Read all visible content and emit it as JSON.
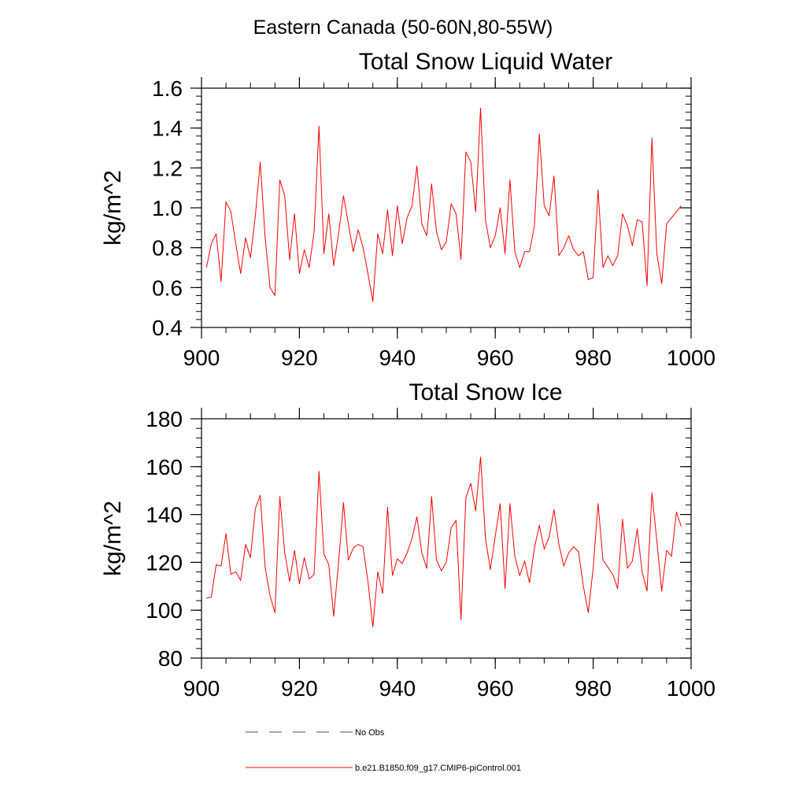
{
  "figure": {
    "title": "Eastern Canada (50-60N,80-55W)"
  },
  "legend": [
    {
      "label": "No Obs",
      "color": "#4a4a8a",
      "style": "dashed"
    },
    {
      "label": "b.e21.B1850.f09_g17.CMIP6-piControl.001",
      "color": "#ff0000",
      "style": "solid"
    }
  ],
  "chart_data": [
    {
      "type": "line",
      "title": "Total Snow Liquid Water",
      "xlabel": "",
      "ylabel": "kg/m^2",
      "xlim": [
        900,
        1000
      ],
      "ylim": [
        0.4,
        1.6
      ],
      "xticks": [
        900,
        920,
        940,
        960,
        980,
        1000
      ],
      "xtick_labels": [
        "900",
        "920",
        "940",
        "960",
        "980",
        "1000"
      ],
      "yticks": [
        0.4,
        0.6,
        0.8,
        1.0,
        1.2,
        1.4,
        1.6
      ],
      "ytick_labels": [
        "0.4",
        "0.6",
        "0.8",
        "1.0",
        "1.2",
        "1.4",
        "1.6"
      ],
      "series": [
        {
          "color": "#ff0000",
          "x_start": 901,
          "values": [
            0.7,
            0.82,
            0.87,
            0.63,
            1.03,
            0.98,
            0.82,
            0.67,
            0.85,
            0.75,
            0.96,
            1.23,
            0.85,
            0.6,
            0.56,
            1.14,
            1.06,
            0.74,
            0.97,
            0.67,
            0.79,
            0.7,
            0.88,
            1.41,
            0.77,
            0.97,
            0.71,
            0.87,
            1.06,
            0.92,
            0.78,
            0.89,
            0.8,
            0.67,
            0.53,
            0.87,
            0.77,
            0.99,
            0.76,
            1.01,
            0.82,
            0.95,
            1.01,
            1.21,
            0.92,
            0.86,
            1.12,
            0.88,
            0.79,
            0.83,
            1.02,
            0.97,
            0.74,
            1.28,
            1.23,
            0.98,
            1.5,
            0.94,
            0.8,
            0.86,
            1.0,
            0.77,
            1.14,
            0.78,
            0.7,
            0.78,
            0.78,
            0.91,
            1.37,
            1.01,
            0.96,
            1.16,
            0.76,
            0.8,
            0.86,
            0.79,
            0.76,
            0.78,
            0.64,
            0.65,
            1.09,
            0.7,
            0.76,
            0.71,
            0.76,
            0.97,
            0.91,
            0.81,
            0.94,
            0.93,
            0.61,
            1.35,
            0.77,
            0.62,
            0.92,
            0.95,
            0.98,
            1.01
          ]
        }
      ]
    },
    {
      "type": "line",
      "title": "Total Snow Ice",
      "xlabel": "",
      "ylabel": "kg/m^2",
      "xlim": [
        900,
        1000
      ],
      "ylim": [
        80,
        180
      ],
      "xticks": [
        900,
        920,
        940,
        960,
        980,
        1000
      ],
      "xtick_labels": [
        "900",
        "920",
        "940",
        "960",
        "980",
        "1000"
      ],
      "yticks": [
        80,
        100,
        120,
        140,
        160,
        180
      ],
      "ytick_labels": [
        "80",
        "100",
        "120",
        "140",
        "160",
        "180"
      ],
      "series": [
        {
          "color": "#ff0000",
          "x_start": 901,
          "values": [
            105,
            105.5,
            119,
            118.5,
            132,
            115,
            116,
            112.5,
            127.5,
            122,
            142.5,
            148,
            118,
            106,
            99,
            147.5,
            124,
            112,
            125,
            111,
            122,
            113,
            115,
            158,
            123.5,
            119,
            97.5,
            120,
            145,
            121,
            126,
            127.5,
            126.5,
            112,
            93,
            116,
            107,
            143,
            114.5,
            121.5,
            119.5,
            124,
            130,
            139,
            124,
            117.5,
            147.5,
            121,
            116.5,
            120,
            134.5,
            137.5,
            96,
            147,
            153,
            141.5,
            164,
            130,
            117,
            131,
            144.5,
            109,
            144.5,
            122.5,
            114.5,
            120.5,
            111.5,
            126,
            135.5,
            125.5,
            130.5,
            142,
            127.5,
            118.5,
            124,
            126.5,
            124.5,
            110,
            99,
            117.5,
            144.5,
            121,
            118,
            115,
            109,
            138,
            117.5,
            120.5,
            134,
            116,
            108,
            149,
            129,
            108,
            125,
            122.5,
            141,
            135
          ]
        }
      ]
    }
  ]
}
